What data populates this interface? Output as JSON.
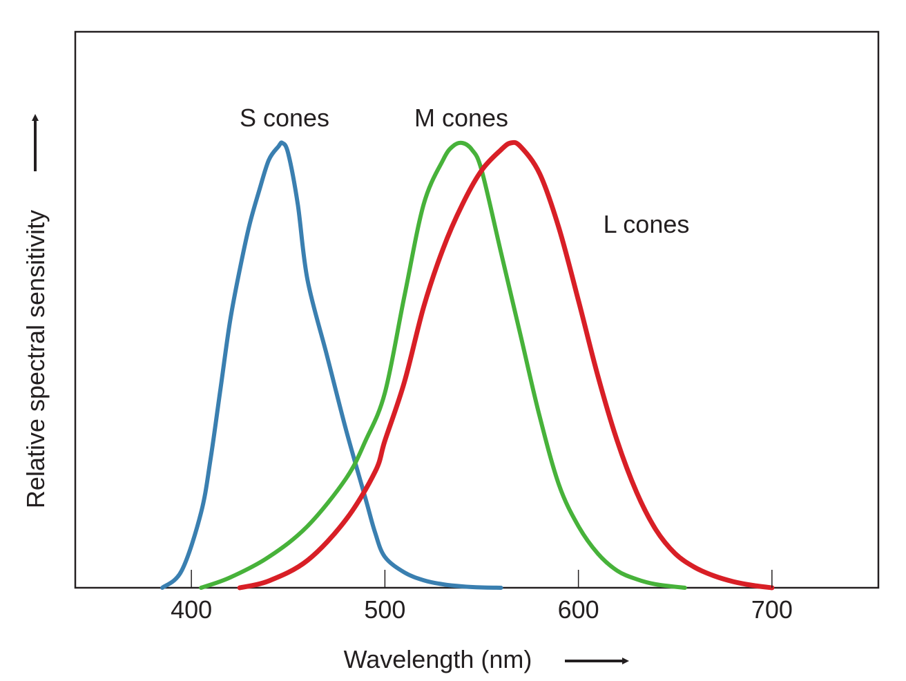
{
  "chart_data": {
    "type": "line",
    "title": "",
    "xlabel": "Wavelength (nm)",
    "ylabel": "Relative spectral sensitivity",
    "xlim": [
      340,
      755
    ],
    "ylim": [
      0,
      1.3
    ],
    "xticks": [
      400,
      500,
      600,
      700
    ],
    "xtick_labels": [
      "400",
      "500",
      "600",
      "700"
    ],
    "grid": false,
    "legend": "none",
    "series": [
      {
        "name": "S cones",
        "label": "S cones",
        "color": "#3a7fb0",
        "x": [
          385,
          395,
          405,
          410,
          415,
          420,
          425,
          430,
          435,
          440,
          445,
          447,
          450,
          455,
          460,
          470,
          480,
          490,
          495,
          500,
          510,
          520,
          530,
          540,
          550,
          560
        ],
        "y": [
          0.0,
          0.05,
          0.22,
          0.38,
          0.58,
          0.78,
          0.93,
          1.06,
          1.16,
          1.25,
          1.29,
          1.3,
          1.27,
          1.12,
          0.9,
          0.68,
          0.46,
          0.26,
          0.16,
          0.09,
          0.045,
          0.022,
          0.01,
          0.004,
          0.001,
          0.0
        ]
      },
      {
        "name": "M cones",
        "label": "M cones",
        "color": "#47b23a",
        "x": [
          405,
          420,
          440,
          460,
          480,
          490,
          500,
          510,
          520,
          530,
          535,
          540,
          545,
          550,
          560,
          570,
          580,
          590,
          600,
          610,
          620,
          630,
          640,
          655
        ],
        "y": [
          0.0,
          0.03,
          0.09,
          0.18,
          0.32,
          0.43,
          0.57,
          0.85,
          1.12,
          1.25,
          1.29,
          1.3,
          1.28,
          1.22,
          0.98,
          0.74,
          0.5,
          0.3,
          0.18,
          0.1,
          0.05,
          0.025,
          0.01,
          0.0
        ]
      },
      {
        "name": "L cones",
        "label": "L cones",
        "color": "#d81f26",
        "x": [
          425,
          440,
          460,
          480,
          495,
          500,
          510,
          520,
          530,
          540,
          550,
          560,
          565,
          570,
          580,
          590,
          600,
          610,
          620,
          630,
          640,
          650,
          660,
          670,
          680,
          690,
          700
        ],
        "y": [
          0.0,
          0.02,
          0.08,
          0.2,
          0.34,
          0.43,
          0.6,
          0.82,
          0.99,
          1.12,
          1.22,
          1.28,
          1.3,
          1.29,
          1.21,
          1.05,
          0.84,
          0.62,
          0.43,
          0.28,
          0.17,
          0.1,
          0.06,
          0.035,
          0.018,
          0.007,
          0.0
        ]
      }
    ]
  }
}
